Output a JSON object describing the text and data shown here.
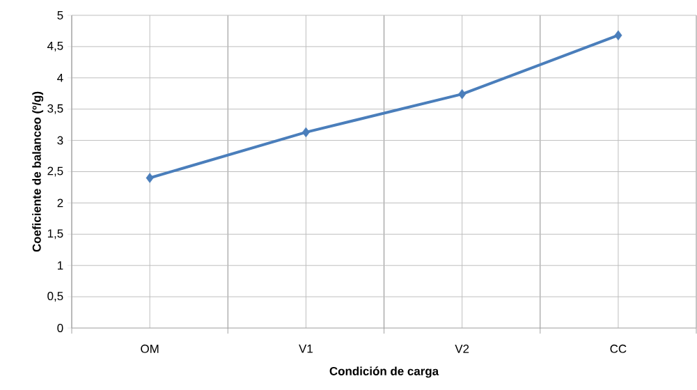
{
  "chart_data": {
    "type": "line",
    "xlabel": "Condición de carga",
    "ylabel": "Coeficiente de balanceo (º/g)",
    "categories": [
      "OM",
      "V1",
      "V2",
      "CC"
    ],
    "series": [
      {
        "color": "#4a7ebb",
        "values": [
          2.4,
          3.13,
          3.74,
          4.68
        ]
      }
    ],
    "ylim": [
      0,
      5
    ],
    "yticks": [
      0,
      {
        "value": 0.5,
        "label": "0,5"
      },
      1,
      {
        "value": 1.5,
        "label": "1,5"
      },
      2,
      {
        "value": 2.5,
        "label": "2,5"
      },
      3,
      {
        "value": 3.5,
        "label": "3,5"
      },
      4,
      {
        "value": 4.5,
        "label": "4,5"
      },
      5
    ],
    "grid": true,
    "legend": false,
    "marker": "diamond",
    "line_style": "solid"
  }
}
